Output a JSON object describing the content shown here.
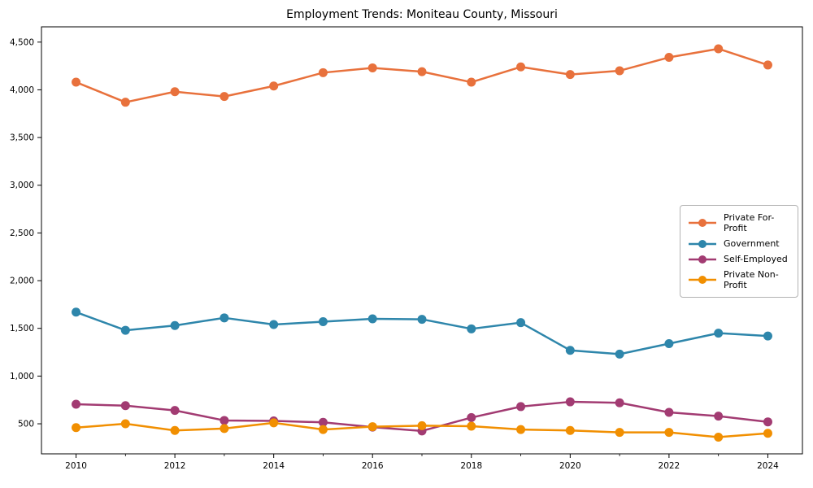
{
  "chart_data": {
    "type": "line",
    "title": "Employment Trends: Moniteau County, Missouri",
    "xlabel": "",
    "ylabel": "",
    "grid": false,
    "legend_position": "center right",
    "x": [
      2010,
      2011,
      2012,
      2013,
      2014,
      2015,
      2016,
      2017,
      2018,
      2019,
      2020,
      2021,
      2022,
      2023,
      2024
    ],
    "series": [
      {
        "name": "Private For-Profit",
        "color": "#e8713c",
        "values": [
          4080,
          3870,
          3980,
          3930,
          4040,
          4180,
          4230,
          4190,
          4080,
          4240,
          4160,
          4200,
          4340,
          4430,
          4260
        ]
      },
      {
        "name": "Government",
        "color": "#2e86ab",
        "values": [
          1670,
          1480,
          1530,
          1610,
          1540,
          1570,
          1600,
          1595,
          1495,
          1560,
          1270,
          1230,
          1340,
          1450,
          1420
        ]
      },
      {
        "name": "Self-Employed",
        "color": "#a23b72",
        "values": [
          705,
          690,
          640,
          535,
          530,
          515,
          465,
          425,
          565,
          680,
          730,
          720,
          620,
          580,
          520
        ]
      },
      {
        "name": "Private Non-Profit",
        "color": "#f18f01",
        "values": [
          460,
          500,
          430,
          450,
          510,
          440,
          470,
          480,
          475,
          440,
          430,
          410,
          410,
          360,
          400
        ]
      }
    ],
    "xlim": [
      2009.3,
      2024.7
    ],
    "ylim": [
      185,
      4660
    ],
    "y_ticks": {
      "values": [
        500,
        1000,
        1500,
        2000,
        2500,
        3000,
        3500,
        4000,
        4500
      ],
      "labels": [
        "500",
        "1,000",
        "1,500",
        "2,000",
        "2,500",
        "3,000",
        "3,500",
        "4,000",
        "4,500"
      ]
    },
    "x_ticks": {
      "major_values": [
        2010,
        2012,
        2014,
        2016,
        2018,
        2020,
        2022,
        2024
      ],
      "major_labels": [
        "2010",
        "2012",
        "2014",
        "2016",
        "2018",
        "2020",
        "2022",
        "2024"
      ],
      "minor_values": [
        2011,
        2013,
        2015,
        2017,
        2019,
        2021,
        2023
      ]
    }
  }
}
